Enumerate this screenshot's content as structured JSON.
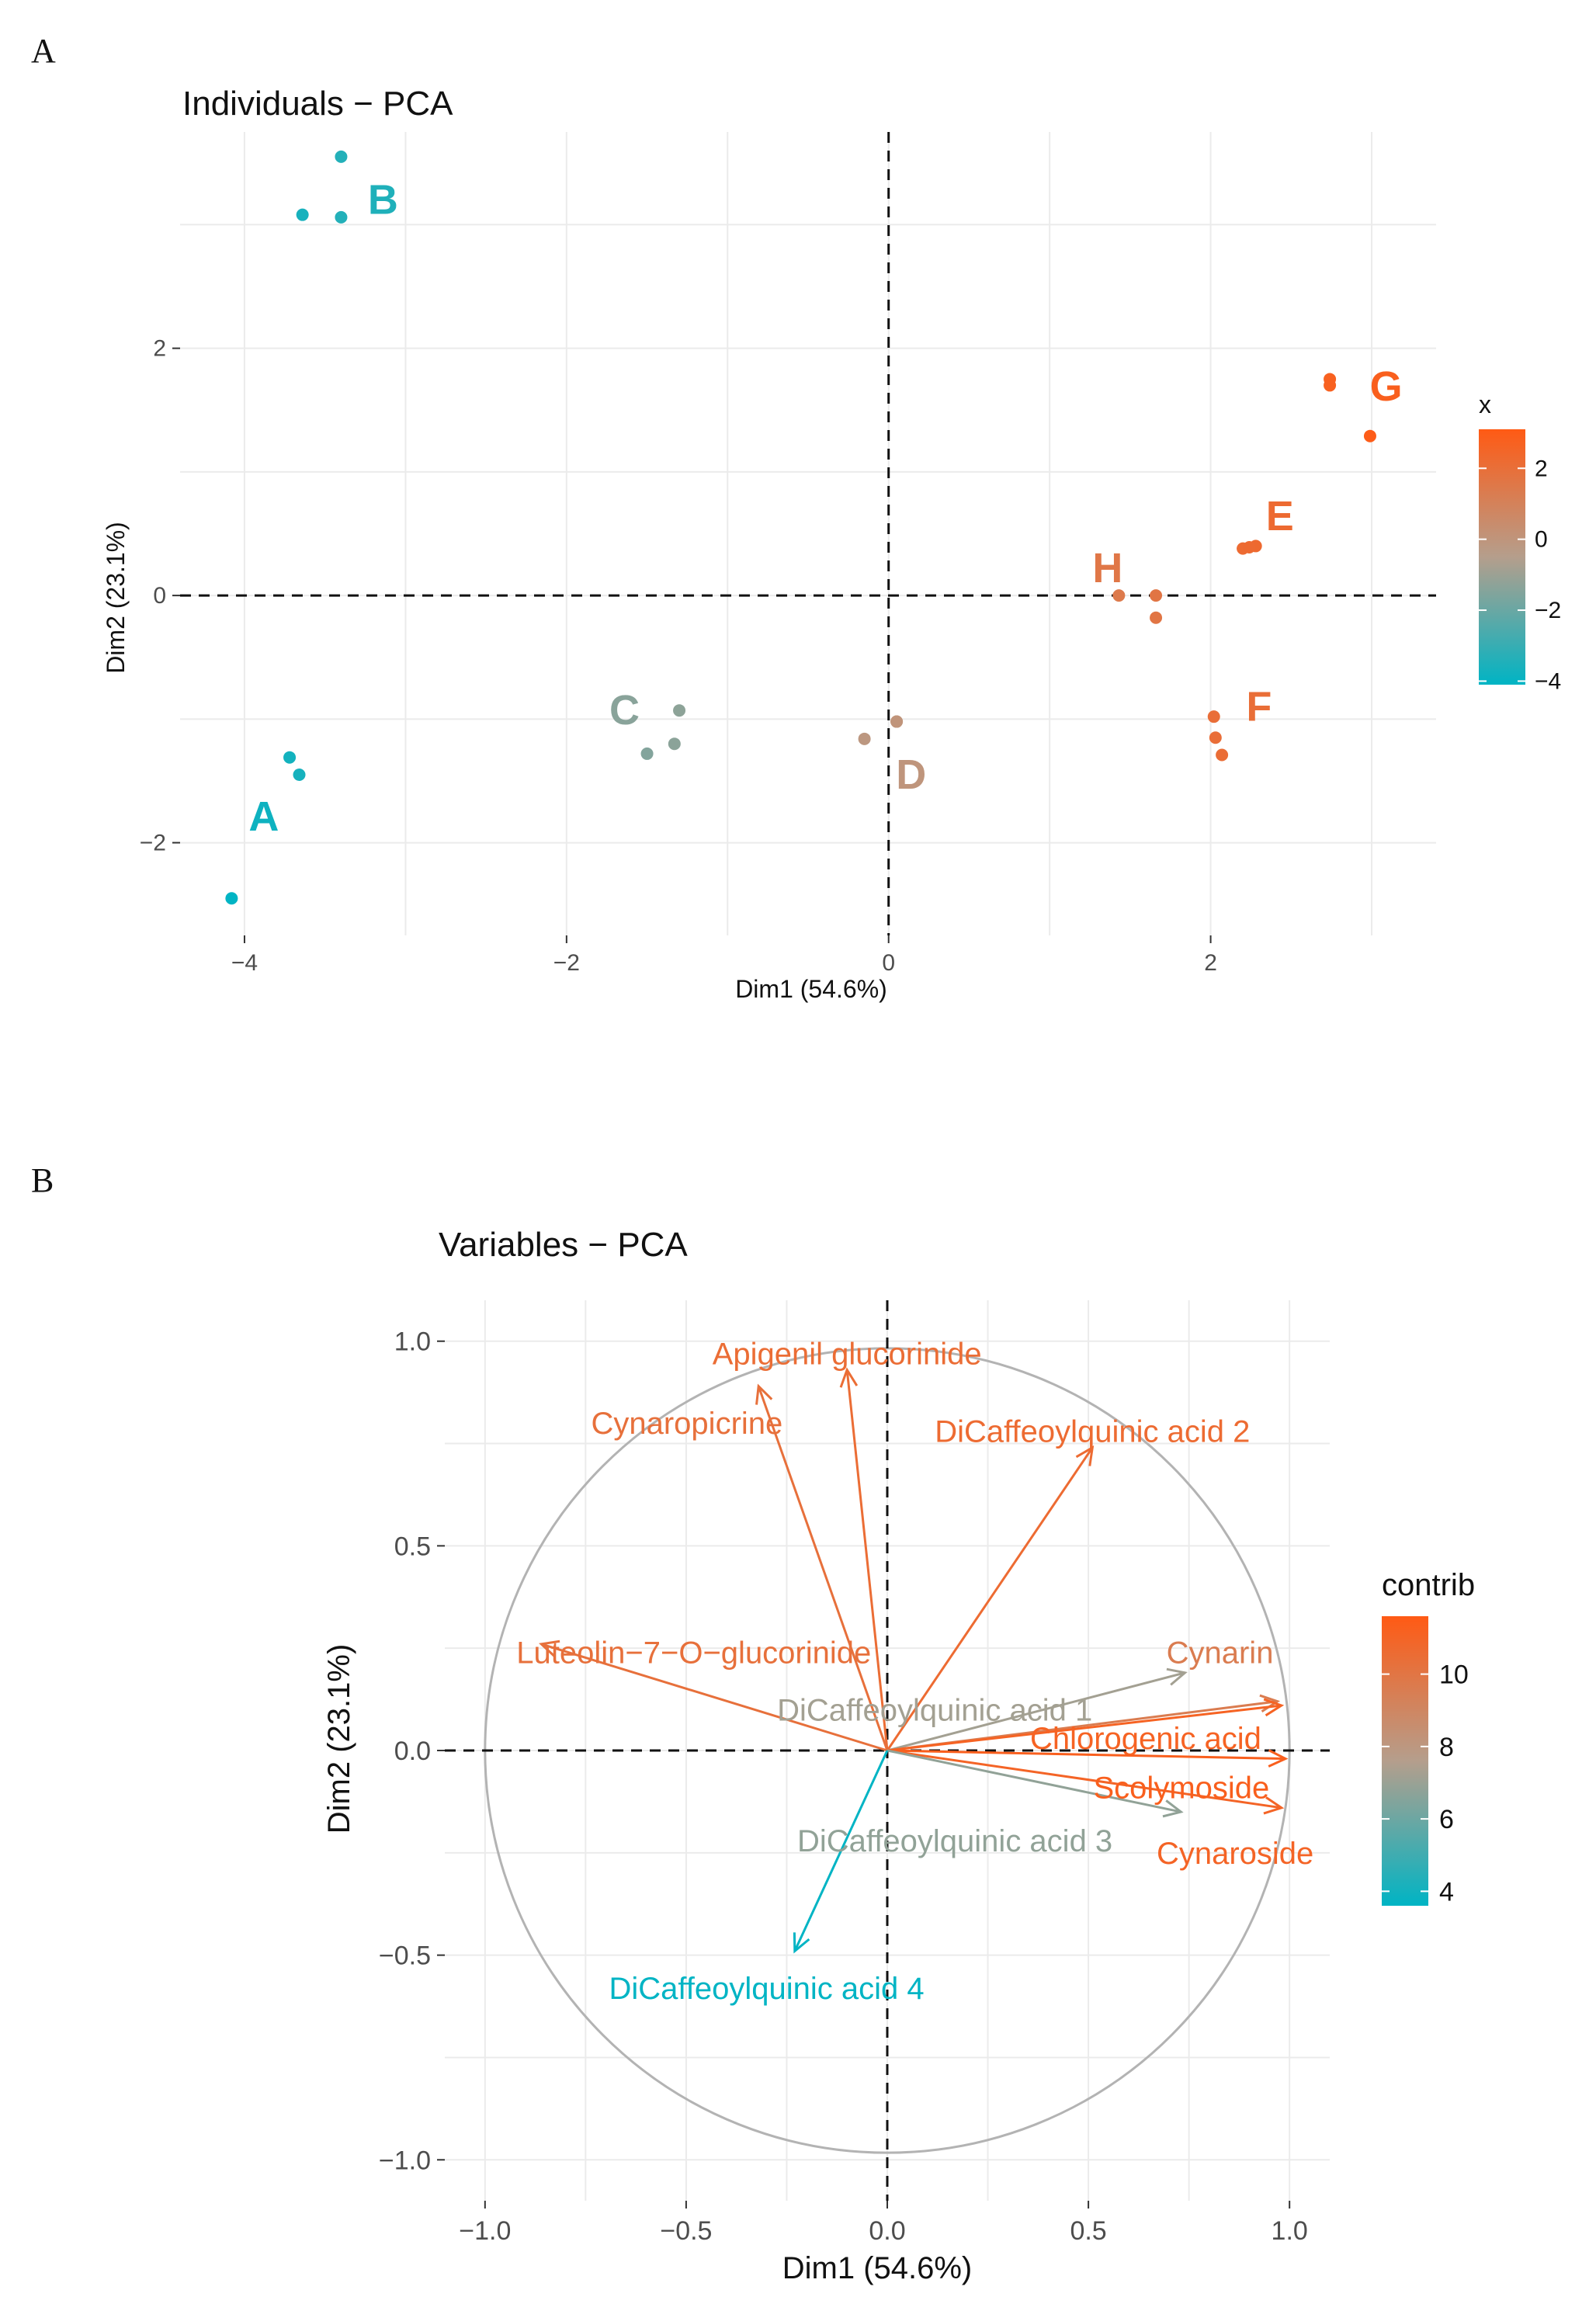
{
  "panels": {
    "a": "A",
    "b": "B"
  },
  "colors": {
    "low": "#00b4c4",
    "mid": "#b59e8c",
    "high": "#ff5a14",
    "grid": "#ebebeb",
    "circle": "#b3b3b3"
  },
  "chart_data": [
    {
      "type": "scatter",
      "title": "Individuals − PCA",
      "xlabel": "Dim1 (54.6%)",
      "ylabel": "Dim2 (23.1%)",
      "xlim": [
        -4.4,
        3.4
      ],
      "ylim": [
        -2.75,
        3.75
      ],
      "xticks": [
        -4,
        -2,
        0,
        2
      ],
      "xtick_labels": [
        "−4",
        "−2",
        "0",
        "2"
      ],
      "yticks": [
        -2,
        0,
        2
      ],
      "ytick_labels": [
        "−2",
        "0",
        "2"
      ],
      "legend": {
        "title": "x",
        "ticks": [
          2,
          0,
          -2,
          -4
        ],
        "tick_labels": [
          "2",
          "0",
          "−2",
          "−4"
        ],
        "range": [
          -4.1,
          3.1
        ]
      },
      "groups": [
        {
          "name": "A",
          "label_pos": [
            -3.88,
            -1.79
          ],
          "points": [
            [
              -3.72,
              -1.31
            ],
            [
              -3.66,
              -1.45
            ],
            [
              -4.08,
              -2.45
            ]
          ]
        },
        {
          "name": "B",
          "label_pos": [
            -3.14,
            3.2
          ],
          "points": [
            [
              -3.4,
              3.55
            ],
            [
              -3.64,
              3.08
            ],
            [
              -3.4,
              3.06
            ]
          ]
        },
        {
          "name": "C",
          "label_pos": [
            -1.64,
            -0.93
          ],
          "points": [
            [
              -1.3,
              -0.93
            ],
            [
              -1.33,
              -1.2
            ],
            [
              -1.5,
              -1.28
            ]
          ]
        },
        {
          "name": "D",
          "label_pos": [
            0.14,
            -1.45
          ],
          "points": [
            [
              0.05,
              -1.02
            ],
            [
              -0.15,
              -1.16
            ],
            [
              0.05,
              -1.02
            ]
          ]
        },
        {
          "name": "E",
          "label_pos": [
            2.43,
            0.64
          ],
          "points": [
            [
              2.28,
              0.4
            ],
            [
              2.2,
              0.38
            ],
            [
              2.24,
              0.39
            ]
          ]
        },
        {
          "name": "F",
          "label_pos": [
            2.3,
            -0.9
          ],
          "points": [
            [
              2.02,
              -0.98
            ],
            [
              2.03,
              -1.15
            ],
            [
              2.07,
              -1.29
            ]
          ]
        },
        {
          "name": "G",
          "label_pos": [
            3.09,
            1.69
          ],
          "points": [
            [
              2.74,
              1.75
            ],
            [
              2.74,
              1.7
            ],
            [
              2.99,
              1.29
            ]
          ]
        },
        {
          "name": "H",
          "label_pos": [
            1.36,
            0.22
          ],
          "points": [
            [
              1.43,
              0.0
            ],
            [
              1.66,
              0.0
            ],
            [
              1.66,
              -0.18
            ]
          ]
        }
      ]
    },
    {
      "type": "biplot",
      "title": "Variables − PCA",
      "xlabel": "Dim1 (54.6%)",
      "ylabel": "Dim2 (23.1%)",
      "xlim": [
        -1.1,
        1.1
      ],
      "ylim": [
        -1.1,
        1.1
      ],
      "xticks": [
        -1.0,
        -0.5,
        0.0,
        0.5,
        1.0
      ],
      "xtick_labels": [
        "−1.0",
        "−0.5",
        "0.0",
        "0.5",
        "1.0"
      ],
      "yticks": [
        1.0,
        0.5,
        0.0,
        -0.5,
        -1.0
      ],
      "ytick_labels": [
        "1.0",
        "0.5",
        "0.0",
        "−0.5",
        "−1.0"
      ],
      "legend": {
        "title": "contrib",
        "ticks": [
          10,
          8,
          6,
          4
        ],
        "tick_labels": [
          "10",
          "8",
          "6",
          "4"
        ],
        "range": [
          3.6,
          11.6
        ]
      },
      "variables": [
        {
          "name": "Apigenil glucorinide",
          "x": -0.1,
          "y": 0.93,
          "contrib": 10.5,
          "label_x": -0.1,
          "label_y": 0.97,
          "anchor": "middle"
        },
        {
          "name": "Cynaropicrine",
          "x": -0.32,
          "y": 0.89,
          "contrib": 10.3,
          "label_x": -0.26,
          "label_y": 0.8,
          "anchor": "end"
        },
        {
          "name": "DiCaffeoylquinic acid 2",
          "x": 0.51,
          "y": 0.74,
          "contrib": 10.6,
          "label_x": 0.51,
          "label_y": 0.78,
          "anchor": "middle"
        },
        {
          "name": "Luteolin−7−O−glucorinide",
          "x": -0.86,
          "y": 0.26,
          "contrib": 10.3,
          "label_x": -0.04,
          "label_y": 0.24,
          "anchor": "end"
        },
        {
          "name": "DiCaffeoylquinic acid 1",
          "x": 0.74,
          "y": 0.19,
          "contrib": 7.2,
          "label_x": 0.51,
          "label_y": 0.1,
          "anchor": "end"
        },
        {
          "name": "Cynarin",
          "x": 0.97,
          "y": 0.12,
          "contrib": 9.6,
          "label_x": 0.96,
          "label_y": 0.24,
          "anchor": "end"
        },
        {
          "name": "Chlorogenic acid",
          "x": 0.98,
          "y": 0.11,
          "contrib": 11.1,
          "label_x": 0.93,
          "label_y": 0.03,
          "anchor": "end"
        },
        {
          "name": "Scolymoside",
          "x": 0.99,
          "y": -0.02,
          "contrib": 11.3,
          "label_x": 0.95,
          "label_y": -0.09,
          "anchor": "end"
        },
        {
          "name": "Cynaroside",
          "x": 0.98,
          "y": -0.14,
          "contrib": 11.0,
          "label_x": 1.06,
          "label_y": -0.25,
          "anchor": "end"
        },
        {
          "name": "DiCaffeoylquinic acid 3",
          "x": 0.73,
          "y": -0.15,
          "contrib": 6.8,
          "label_x": 0.56,
          "label_y": -0.22,
          "anchor": "end"
        },
        {
          "name": "DiCaffeoylquinic acid 4",
          "x": -0.23,
          "y": -0.49,
          "contrib": 3.5,
          "label_x": -0.3,
          "label_y": -0.58,
          "anchor": "middle"
        }
      ]
    }
  ]
}
